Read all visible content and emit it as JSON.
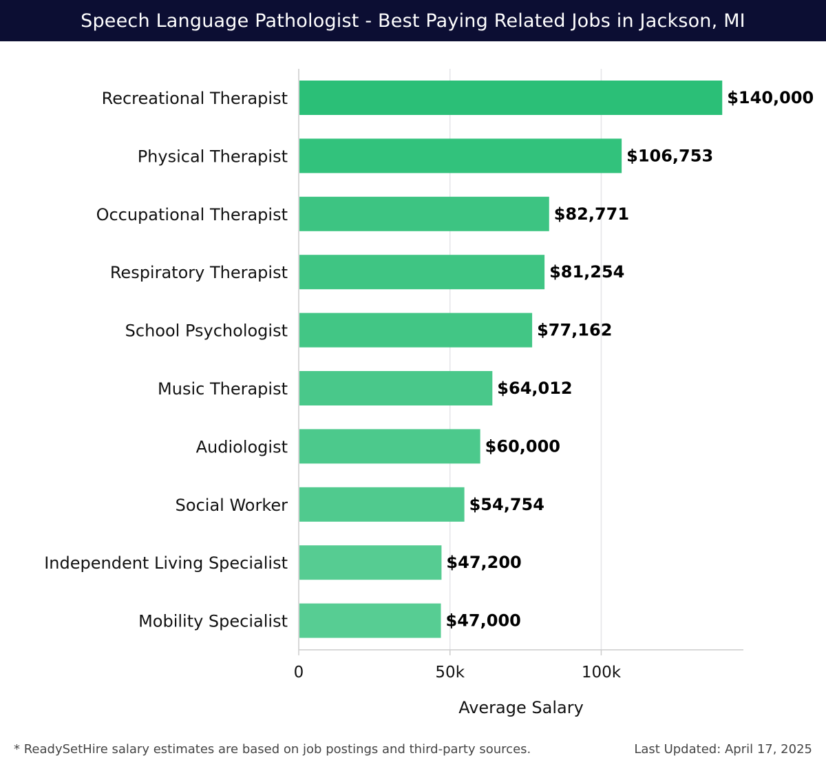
{
  "header": {
    "title": "Speech Language Pathologist - Best Paying Related Jobs in Jackson, MI"
  },
  "chart_data": {
    "type": "bar",
    "orientation": "horizontal",
    "title": "Speech Language Pathologist - Best Paying Related Jobs in Jackson, MI",
    "xlabel": "Average Salary",
    "ylabel": "",
    "xlim": [
      0,
      147000
    ],
    "x_ticks": [
      {
        "value": 0,
        "label": "0"
      },
      {
        "value": 50000,
        "label": "50k"
      },
      {
        "value": 100000,
        "label": "100k"
      }
    ],
    "grid": true,
    "categories": [
      "Recreational Therapist",
      "Physical Therapist",
      "Occupational Therapist",
      "Respiratory Therapist",
      "School Psychologist",
      "Music Therapist",
      "Audiologist",
      "Social Worker",
      "Independent Living Specialist",
      "Mobility Specialist"
    ],
    "values": [
      140000,
      106753,
      82771,
      81254,
      77162,
      64012,
      60000,
      54754,
      47200,
      47000
    ],
    "value_labels": [
      "$140,000",
      "$106,753",
      "$82,771",
      "$81,254",
      "$77,162",
      "$64,012",
      "$60,000",
      "$54,754",
      "$47,200",
      "$47,000"
    ],
    "bar_colors": [
      "#2bbf77",
      "#32c27c",
      "#3dc482",
      "#3fc583",
      "#42c685",
      "#49c88a",
      "#4cc98c",
      "#50ca8e",
      "#56cc92",
      "#57cd93"
    ],
    "grid_color": "#e4e4e8",
    "axis_color": "#cccccc"
  },
  "footer": {
    "note": "* ReadySetHire salary estimates are based on job postings and third-party sources.",
    "updated": "Last Updated: April 17, 2025"
  }
}
